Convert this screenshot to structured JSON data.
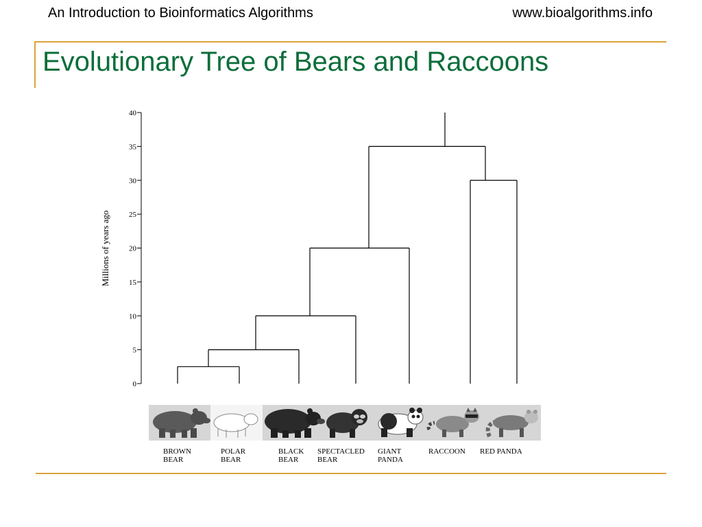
{
  "header": {
    "left_text": "An Introduction to Bioinformatics Algorithms",
    "right_text": "www.bioalgorithms.info"
  },
  "slide": {
    "title": "Evolutionary Tree of Bears and Raccoons"
  },
  "colors": {
    "accent_rule": "#D9A43A",
    "title": "#0B6E3A",
    "tree_lines": "#000000"
  },
  "figure": {
    "axis": {
      "label": "Millions of years ago",
      "ticks": [
        "0",
        "5",
        "10",
        "15",
        "20",
        "25",
        "30",
        "35",
        "40"
      ]
    },
    "species": [
      {
        "line1": "BROWN",
        "line2": "BEAR",
        "icon": "brown-bear-icon"
      },
      {
        "line1": "POLAR",
        "line2": "BEAR",
        "icon": "polar-bear-icon"
      },
      {
        "line1": "BLACK",
        "line2": "BEAR",
        "icon": "black-bear-icon"
      },
      {
        "line1": "SPECTACLED",
        "line2": "BEAR",
        "icon": "spectacled-bear-icon"
      },
      {
        "line1": "GIANT",
        "line2": "PANDA",
        "icon": "giant-panda-icon"
      },
      {
        "line1": "RACCOON",
        "line2": "",
        "icon": "raccoon-icon"
      },
      {
        "line1": "RED PANDA",
        "line2": "",
        "icon": "red-panda-icon"
      }
    ],
    "divergence_mya": {
      "brown_polar": 2.5,
      "ursine_black": 5,
      "spectacled": 10,
      "giant_panda": 20,
      "raccoon_red_panda": 30,
      "bears_procyonids": 35,
      "root": 40
    }
  }
}
